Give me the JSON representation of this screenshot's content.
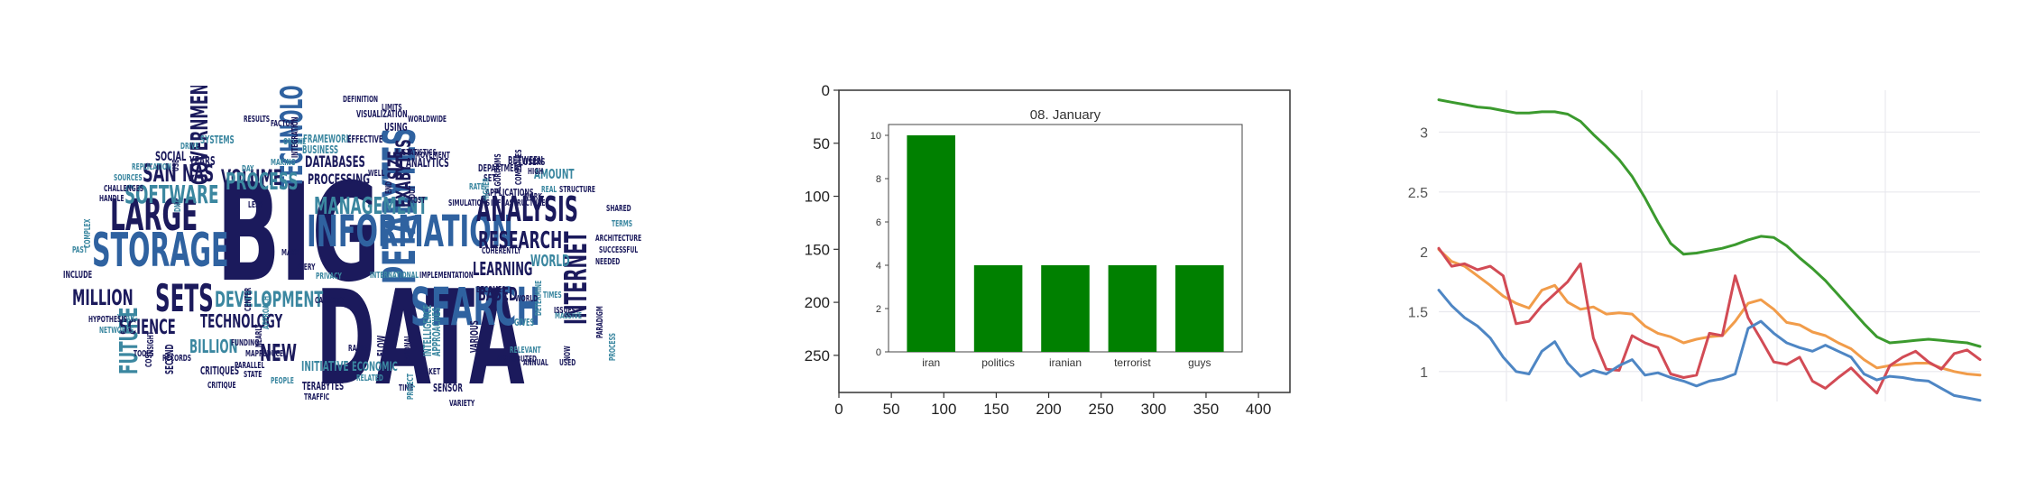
{
  "panels": {
    "word_cloud": {
      "palette": {
        "navy": "#1b1a5c",
        "teal": "#3b87a0",
        "blue": "#2f62a0"
      },
      "words": [
        "BIG",
        "DATA",
        "INFORMATION",
        "STORAGE",
        "LARGE",
        "SETS",
        "SEARCH",
        "PETABYTES",
        "ANALYSIS",
        "TECHNOLOGIES",
        "MANAGEMENT",
        "SOFTWARE",
        "VOLUME",
        "RESEARCH",
        "MILLION",
        "DEVELOPMENT",
        "TECHNOLOGY",
        "NEW",
        "FUTURE",
        "PROCESS",
        "GOVERNMENT",
        "INTERNET",
        "EXABYTES",
        "SAN",
        "NAS",
        "SCIENCE",
        "BILLION",
        "SIZE",
        "LEARNING",
        "WORLD",
        "BASED",
        "DATABASES",
        "PROCESSING",
        "INITIATIVE",
        "ECONOMIC",
        "TERABYTES",
        "SOCIAL",
        "YEARS",
        "SYSTEMS",
        "APPLICATIONS",
        "INFRASTRUCTURE",
        "AMOUNT",
        "ANALYTICS",
        "FRAMEWORK",
        "BUSINESS",
        "EFFECTIVE",
        "STATISTICS",
        "VISUALIZATION",
        "DEFINITION",
        "MASSIVE",
        "ARCHITECTURE",
        "SUCCESSFUL",
        "NEEDED",
        "SHARED",
        "TERMS",
        "YEAR",
        "NETWORKS",
        "HYPOTHESIS",
        "INCLUDE",
        "PAST",
        "COMPLEX",
        "CHALLENGES",
        "HANDLE",
        "SOURCES",
        "REPLICATION",
        "DRIVE",
        "RESULTS",
        "FACTOR",
        "ONLINE",
        "DAY",
        "MAKING",
        "INTEGRATION",
        "WORLDWIDE",
        "USING",
        "BETWEEN",
        "DEPARTMENT",
        "SET",
        "USERS",
        "HIGH",
        "REAL",
        "STRUCTURE",
        "WORK",
        "RATE",
        "HIGHER",
        "ALGORITHMS",
        "COMPANIES",
        "ISSUES",
        "TIMES",
        "EVERY",
        "PRIVACY",
        "INTERNATIONAL",
        "IMPLEMENTATION",
        "BECOMES",
        "VARIOUS",
        "APPROACHES",
        "INTELLIGENCE",
        "NATIONAL",
        "FLOW",
        "SECOND",
        "CRITIQUES",
        "PARALLEL",
        "STATE",
        "CRITIQUE",
        "PEOPLE",
        "TRAFFIC",
        "RELATED",
        "TIME",
        "SENSOR",
        "MARKET",
        "VARIETY",
        "PROJECT",
        "DISTRIBUTED",
        "RELEVANT",
        "ANNUAL",
        "USED",
        "NOW",
        "PROCESS",
        "PARADIGM",
        "FUNDING",
        "RECORDS",
        "COST",
        "INSIGHT",
        "TOOLS",
        "CENTER",
        "APPROACH",
        "MAPREDUCE",
        "NEARLY",
        "MOST",
        "END",
        "OUT",
        "DNA",
        "USE",
        "WELL",
        "DETERMINE",
        "GIVES",
        "LESS",
        "MAKE",
        "CAPACITY",
        "RAPID",
        "LIMITS",
        "MOVEMENT",
        "SIMULATIONS",
        "COHERENTLY",
        "WORLD"
      ]
    },
    "bar_chart_image": {
      "outer_axes": {
        "x_ticks": [
          "0",
          "50",
          "100",
          "150",
          "200",
          "250",
          "300",
          "350",
          "400"
        ],
        "y_ticks": [
          "0",
          "50",
          "100",
          "150",
          "200",
          "250"
        ]
      },
      "chart_data": {
        "type": "bar",
        "title": "08. January",
        "categories": [
          "iran",
          "politics",
          "iranian",
          "terrorist",
          "guys"
        ],
        "values": [
          10,
          4,
          4,
          4,
          4
        ],
        "ylim": [
          0,
          10.5
        ],
        "y_ticks": [
          "0",
          "2",
          "4",
          "6",
          "8",
          "10"
        ],
        "xlabel": "",
        "ylabel": "",
        "bar_color": "#008000"
      }
    },
    "line_chart": {
      "chart_data": {
        "type": "line",
        "y_ticks": [
          "1",
          "1.5",
          "2",
          "2.5",
          "3"
        ],
        "ylim": [
          0.75,
          3.35
        ],
        "xlim": [
          0,
          40
        ],
        "grid": true,
        "series": [
          {
            "color": "#3b9a2e",
            "values": [
              3.27,
              3.25,
              3.23,
              3.21,
              3.2,
              3.18,
              3.16,
              3.16,
              3.17,
              3.17,
              3.15,
              3.09,
              2.98,
              2.88,
              2.77,
              2.63,
              2.45,
              2.25,
              2.07,
              1.98,
              1.99,
              2.01,
              2.03,
              2.06,
              2.1,
              2.13,
              2.12,
              2.05,
              1.95,
              1.86,
              1.76,
              1.64,
              1.52,
              1.4,
              1.29,
              1.24,
              1.25,
              1.26,
              1.27,
              1.26,
              1.25,
              1.24,
              1.21
            ]
          },
          {
            "color": "#f19c4a",
            "values": [
              2.02,
              1.92,
              1.88,
              1.8,
              1.72,
              1.63,
              1.57,
              1.53,
              1.68,
              1.72,
              1.58,
              1.52,
              1.54,
              1.48,
              1.49,
              1.48,
              1.38,
              1.32,
              1.29,
              1.24,
              1.27,
              1.29,
              1.3,
              1.42,
              1.57,
              1.6,
              1.52,
              1.41,
              1.39,
              1.33,
              1.3,
              1.24,
              1.19,
              1.1,
              1.03,
              1.05,
              1.06,
              1.07,
              1.07,
              1.03,
              1.0,
              0.98,
              0.97
            ]
          },
          {
            "color": "#d24b55",
            "values": [
              2.03,
              1.88,
              1.9,
              1.85,
              1.88,
              1.8,
              1.4,
              1.42,
              1.55,
              1.65,
              1.75,
              1.9,
              1.28,
              1.02,
              1.01,
              1.3,
              1.24,
              1.2,
              0.98,
              0.95,
              0.97,
              1.32,
              1.3,
              1.8,
              1.45,
              1.27,
              1.08,
              1.06,
              1.12,
              0.92,
              0.86,
              0.95,
              1.03,
              0.92,
              0.82,
              1.05,
              1.12,
              1.17,
              1.08,
              1.02,
              1.15,
              1.18,
              1.1
            ]
          },
          {
            "color": "#4e86c4",
            "values": [
              1.68,
              1.55,
              1.45,
              1.38,
              1.28,
              1.12,
              1.0,
              0.98,
              1.17,
              1.25,
              1.07,
              0.96,
              1.01,
              0.98,
              1.05,
              1.1,
              0.97,
              0.99,
              0.95,
              0.92,
              0.88,
              0.92,
              0.94,
              0.98,
              1.36,
              1.42,
              1.32,
              1.24,
              1.2,
              1.17,
              1.22,
              1.17,
              1.12,
              0.98,
              0.93,
              0.96,
              0.95,
              0.93,
              0.92,
              0.86,
              0.8,
              0.78,
              0.76
            ]
          }
        ]
      }
    }
  }
}
